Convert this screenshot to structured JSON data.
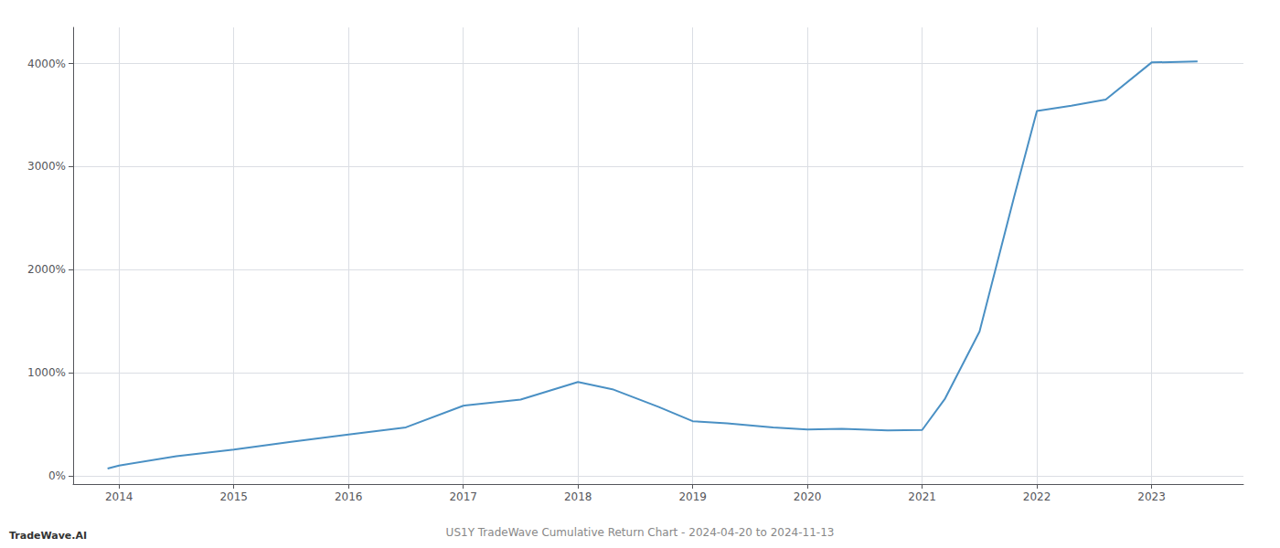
{
  "chart_data": {
    "type": "line",
    "title": "US1Y TradeWave Cumulative Return Chart - 2024-04-20 to 2024-11-13",
    "annotations": [
      "TradeWave.AI"
    ],
    "x": [
      2013.9,
      2014.0,
      2014.5,
      2015.0,
      2015.5,
      2016.0,
      2016.5,
      2017.0,
      2017.5,
      2018.0,
      2018.3,
      2018.7,
      2019.0,
      2019.3,
      2019.7,
      2020.0,
      2020.3,
      2020.7,
      2021.0,
      2021.2,
      2021.5,
      2021.8,
      2022.0,
      2022.3,
      2022.6,
      2023.0,
      2023.4
    ],
    "values": [
      70,
      100,
      190,
      255,
      330,
      400,
      470,
      680,
      740,
      910,
      840,
      670,
      530,
      510,
      470,
      450,
      455,
      440,
      445,
      750,
      1400,
      2700,
      3540,
      3590,
      3650,
      4010,
      4020
    ],
    "color": "#4a90c4",
    "xlim": [
      2013.6,
      2023.8
    ],
    "ylim": [
      -80,
      4350
    ],
    "xticks": [
      2014,
      2015,
      2016,
      2017,
      2018,
      2019,
      2020,
      2021,
      2022,
      2023
    ],
    "yticks": [
      {
        "value": 0,
        "label": "0%"
      },
      {
        "value": 1000,
        "label": "1000%"
      },
      {
        "value": 2000,
        "label": "2000%"
      },
      {
        "value": 3000,
        "label": "3000%"
      },
      {
        "value": 4000,
        "label": "4000%"
      }
    ],
    "grid": true
  }
}
